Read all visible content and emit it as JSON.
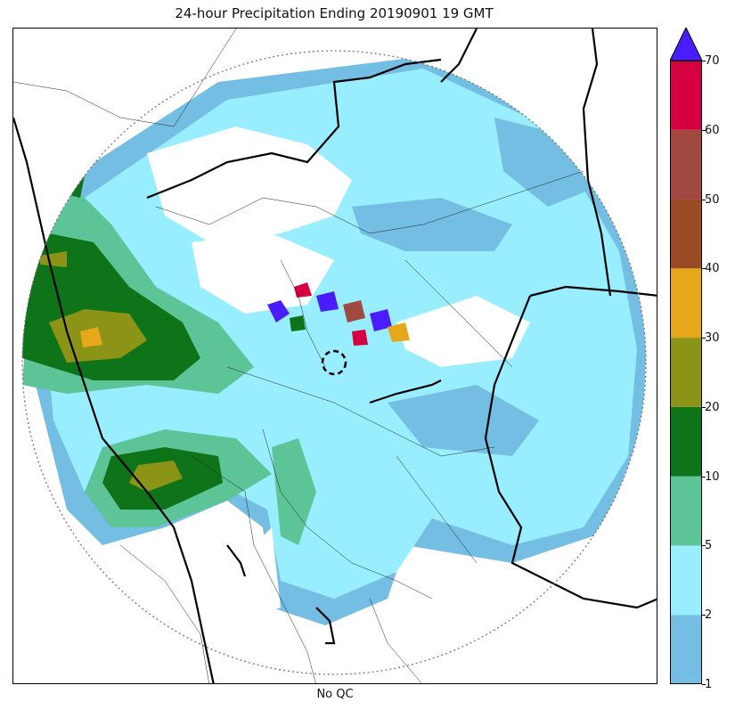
{
  "title": "24-hour Precipitation Ending 20190901 19 GMT",
  "xlabel": "No QC",
  "colorbar": {
    "levels": [
      "1",
      "2",
      "5",
      "10",
      "20",
      "30",
      "40",
      "50",
      "60",
      "70"
    ],
    "colors": [
      "#74bde3",
      "#98eefe",
      "#5dc497",
      "#0f7319",
      "#8c9418",
      "#e6a81a",
      "#9a4b23",
      "#a14941",
      "#d5003f"
    ],
    "extend_color": "#4a1dfe"
  },
  "map": {
    "type": "radar precipitation accumulation",
    "range_ring": "dotted",
    "radar_site_marker": "dashed circle",
    "borders": [
      "national borders (thick)",
      "regional borders (thin)"
    ]
  }
}
